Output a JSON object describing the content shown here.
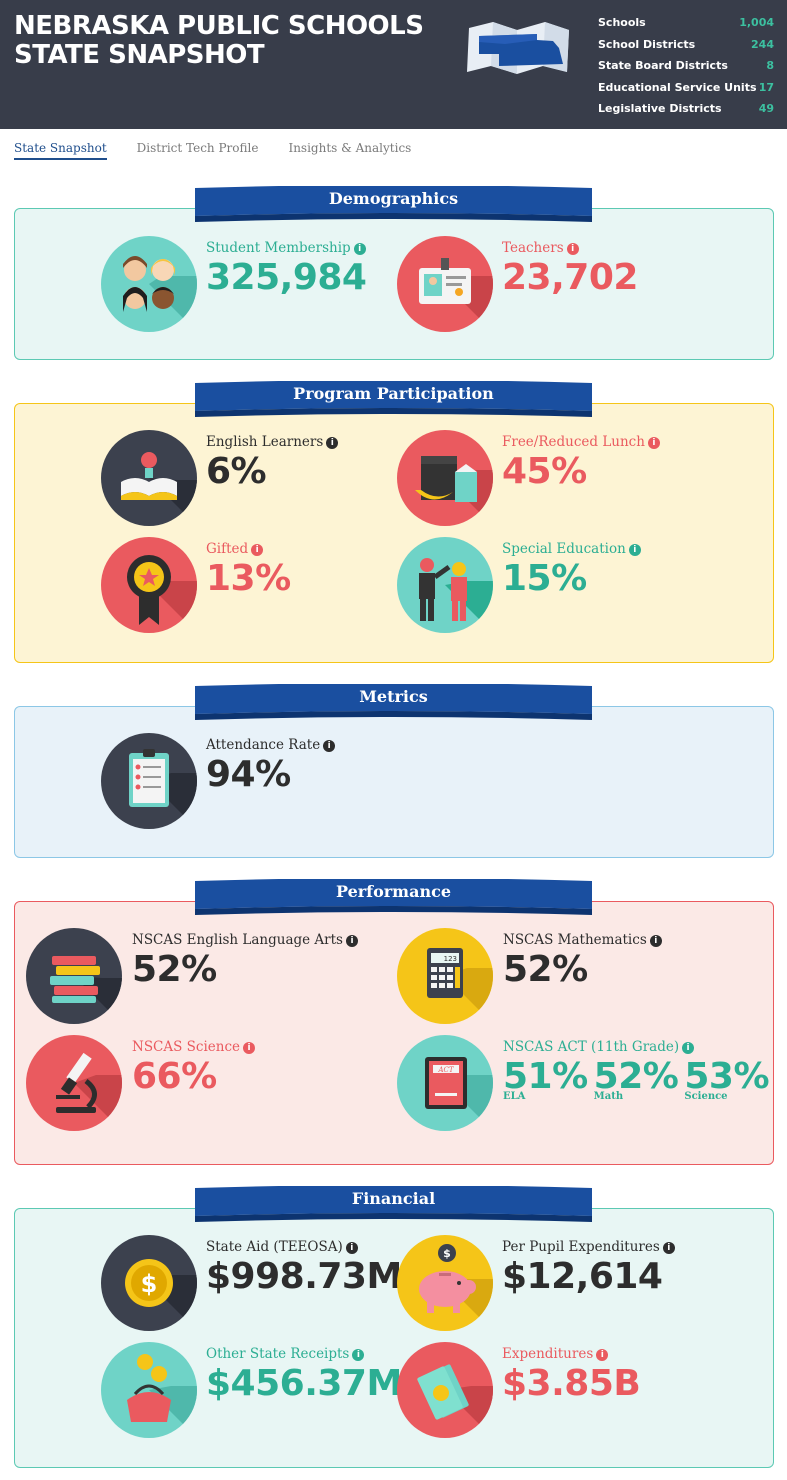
{
  "header": {
    "title_line1": "NEBRASKA PUBLIC SCHOOLS",
    "title_line2": "STATE SNAPSHOT",
    "stats": [
      {
        "label": "Schools",
        "value": "1,004"
      },
      {
        "label": "School Districts",
        "value": "244"
      },
      {
        "label": "State Board Districts",
        "value": "8"
      },
      {
        "label": "Educational Service Units",
        "value": "17"
      },
      {
        "label": "Legislative Districts",
        "value": "49"
      }
    ]
  },
  "tabs": [
    {
      "label": "State Snapshot",
      "active": true
    },
    {
      "label": "District Tech Profile",
      "active": false
    },
    {
      "label": "Insights & Analytics",
      "active": false
    }
  ],
  "sections": {
    "demographics": {
      "title": "Demographics",
      "student_membership": {
        "label": "Student Membership",
        "value": "325,984"
      },
      "teachers": {
        "label": "Teachers",
        "value": "23,702"
      }
    },
    "program": {
      "title": "Program Participation",
      "english_learners": {
        "label": "English Learners",
        "value": "6%"
      },
      "free_reduced_lunch": {
        "label": "Free/Reduced Lunch",
        "value": "45%"
      },
      "gifted": {
        "label": "Gifted",
        "value": "13%"
      },
      "special_education": {
        "label": "Special Education",
        "value": "15%"
      }
    },
    "metrics": {
      "title": "Metrics",
      "attendance": {
        "label": "Attendance Rate",
        "value": "94%"
      }
    },
    "performance": {
      "title": "Performance",
      "ela": {
        "label": "NSCAS English Language Arts",
        "value": "52%"
      },
      "math": {
        "label": "NSCAS Mathematics",
        "value": "52%"
      },
      "science": {
        "label": "NSCAS Science",
        "value": "66%"
      },
      "act": {
        "label": "NSCAS ACT (11th Grade)",
        "values": [
          {
            "value": "51%",
            "sub": "ELA"
          },
          {
            "value": "52%",
            "sub": "Math"
          },
          {
            "value": "53%",
            "sub": "Science"
          }
        ],
        "book_text": "ACT"
      }
    },
    "financial": {
      "title": "Financial",
      "state_aid": {
        "label": "State Aid (TEEOSA)",
        "value": "$998.73M"
      },
      "per_pupil": {
        "label": "Per Pupil Expenditures",
        "value": "$12,614"
      },
      "other_receipts": {
        "label": "Other State Receipts",
        "value": "$456.37M"
      },
      "expenditures": {
        "label": "Expenditures",
        "value": "$3.85B"
      }
    }
  },
  "icons": {
    "info": "i",
    "calc_display": "123",
    "dollar": "$"
  },
  "colors": {
    "header_bg": "#383d4a",
    "teal": "#2cae93",
    "red": "#ea5a5f",
    "dark": "#2d2d2d",
    "banner_blue": "#1a4fa0",
    "yellow": "#f5c518"
  }
}
